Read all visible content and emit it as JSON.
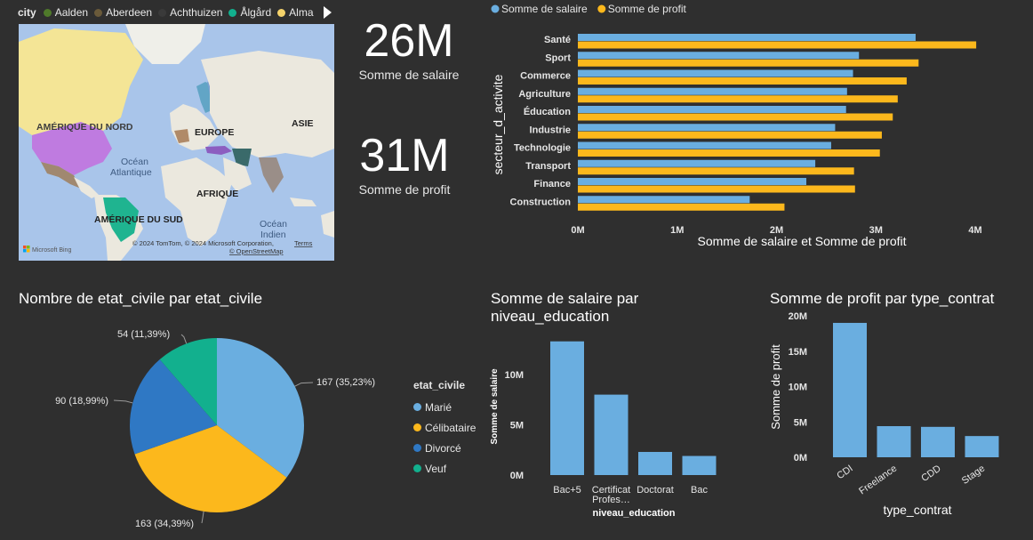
{
  "colors": {
    "background": "#2f2f2f",
    "salaire": "#6aaee0",
    "profit": "#fcb81c",
    "marie": "#6aaee0",
    "celibataire": "#fcb81c",
    "divorce": "#2f78c4",
    "veuf": "#12b08e",
    "axis_text": "#e6e6e6"
  },
  "map": {
    "legend_title": "city",
    "legend_items": [
      {
        "label": "Aalden",
        "color": "#4f7a2a"
      },
      {
        "label": "Aberdeen",
        "color": "#6a5a3a"
      },
      {
        "label": "Achthuizen",
        "color": "#3a3a3a"
      },
      {
        "label": "Ålgård",
        "color": "#12b08e"
      },
      {
        "label": "Alma",
        "color": "#f5d36b"
      }
    ],
    "labels": {
      "north_america": "AMÉRIQUE DU NORD",
      "europe": "EUROPE",
      "asia": "ASIE",
      "ocean_atl_1": "Océan",
      "ocean_atl_2": "Atlantique",
      "africa": "AFRIQUE",
      "south_america": "AMÉRIQUE DU SUD",
      "ocean_ind_1": "Océan",
      "ocean_ind_2": "Indien",
      "attribution": "© 2024 TomTom, © 2024 Microsoft Corporation,",
      "terms": "Terms",
      "osm": "© OpenStreetMap",
      "bing": "Microsoft Bing"
    }
  },
  "kpis": {
    "salaire_value": "26M",
    "salaire_label": "Somme de salaire",
    "profit_value": "31M",
    "profit_label": "Somme de profit"
  },
  "pie": {
    "title": "Nombre de etat_civile par etat_civile",
    "legend_title": "etat_civile"
  },
  "bar_edu": {
    "title_line1": "Somme de salaire par",
    "title_line2": "niveau_education"
  },
  "bar_contrat": {
    "title": "Somme de profit par type_contrat"
  },
  "chart_data": [
    {
      "type": "bar",
      "orientation": "horizontal",
      "categories": [
        "Santé",
        "Sport",
        "Commerce",
        "Agriculture",
        "Éducation",
        "Industrie",
        "Technologie",
        "Transport",
        "Finance",
        "Construction"
      ],
      "series": [
        {
          "name": "Somme de salaire",
          "values": [
            3.4,
            2.83,
            2.77,
            2.71,
            2.7,
            2.59,
            2.55,
            2.39,
            2.3,
            1.73
          ]
        },
        {
          "name": "Somme de profit",
          "values": [
            4.01,
            3.43,
            3.31,
            3.22,
            3.17,
            3.06,
            3.04,
            2.78,
            2.79,
            2.08
          ]
        }
      ],
      "ylabel": "secteur_d_activite",
      "xlabel": "Somme de salaire et Somme de profit",
      "xticks": [
        "0M",
        "1M",
        "2M",
        "3M",
        "4M"
      ],
      "unit": "M",
      "xlim": [
        0,
        4
      ],
      "legend_position": "top-left"
    },
    {
      "type": "pie",
      "categories": [
        "Marié",
        "Célibataire",
        "Divorcé",
        "Veuf"
      ],
      "values": [
        167,
        163,
        90,
        54
      ],
      "data_labels": [
        "167 (35,23%)",
        "163 (34,39%)",
        "90 (18,99%)",
        "54 (11,39%)"
      ],
      "legend_position": "right"
    },
    {
      "type": "bar",
      "categories": [
        "Bac+5",
        "Certificat Profes…",
        "Doctorat",
        "Bac"
      ],
      "tick_labels": [
        [
          "Bac+5"
        ],
        [
          "Certificat",
          "Profes…"
        ],
        [
          "Doctorat"
        ],
        [
          "Bac"
        ]
      ],
      "values": [
        13.3,
        8.0,
        2.3,
        1.9
      ],
      "ylabel": "Somme de salaire",
      "xlabel": "niveau_education",
      "yticks": [
        "0M",
        "5M",
        "10M"
      ],
      "unit": "M",
      "ylim": [
        0,
        14
      ]
    },
    {
      "type": "bar",
      "categories": [
        "CDI",
        "Freelance",
        "CDD",
        "Stage"
      ],
      "values": [
        19.0,
        4.4,
        4.3,
        3.0
      ],
      "ylabel": "Somme de profit",
      "xlabel": "type_contrat",
      "yticks": [
        "0M",
        "5M",
        "10M",
        "15M",
        "20M"
      ],
      "unit": "M",
      "ylim": [
        0,
        20
      ]
    }
  ]
}
